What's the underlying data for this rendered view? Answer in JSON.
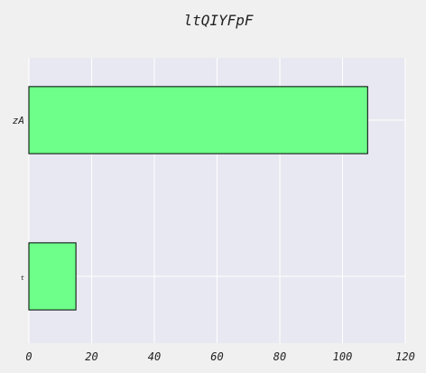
{
  "chart_data": {
    "type": "bar",
    "orientation": "horizontal",
    "title": "ltQIYFpF",
    "xlabel": "",
    "ylabel": "",
    "categories": [
      "zA",
      "t"
    ],
    "values": [
      108,
      15
    ],
    "xlim": [
      0,
      120
    ],
    "xticks": [
      0,
      20,
      40,
      60,
      80,
      100,
      120
    ],
    "grid": true,
    "legend": "none",
    "colors": {
      "background": "#f0f0f0",
      "plot_area": "#e8e8f2",
      "grid": "#ffffff",
      "bar_fill": "#6eff8a",
      "bar_edge": "#000000",
      "text": "#222222"
    }
  }
}
